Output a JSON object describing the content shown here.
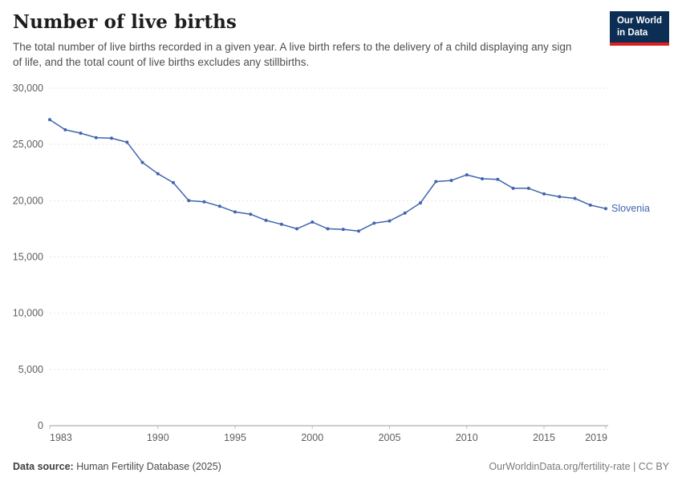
{
  "header": {
    "title": "Number of live births",
    "subtitle": "The total number of live births recorded in a given year. A live birth refers to the delivery of a child displaying any sign of life, and the total count of live births excludes any stillbirths.",
    "logo": {
      "line1": "Our World",
      "line2": "in Data"
    }
  },
  "branding": {
    "logo_bg": "#0c2d54",
    "logo_accent": "#dc1f1f"
  },
  "chart_data": {
    "type": "line",
    "title": "Number of live births",
    "xlabel": "",
    "ylabel": "",
    "xlim": [
      1983,
      2019
    ],
    "ylim": [
      0,
      30000
    ],
    "grid": "horizontal-dashed",
    "legend_position": "end-of-line",
    "yticks": [
      0,
      5000,
      10000,
      15000,
      20000,
      25000,
      30000
    ],
    "ytick_labels": [
      "0",
      "5,000",
      "10,000",
      "15,000",
      "20,000",
      "25,000",
      "30,000"
    ],
    "xticks": [
      1983,
      1990,
      1995,
      2000,
      2005,
      2010,
      2015,
      2019
    ],
    "x": [
      1983,
      1984,
      1985,
      1986,
      1987,
      1988,
      1989,
      1990,
      1991,
      1992,
      1993,
      1994,
      1995,
      1996,
      1997,
      1998,
      1999,
      2000,
      2001,
      2002,
      2003,
      2004,
      2005,
      2006,
      2007,
      2008,
      2009,
      2010,
      2011,
      2012,
      2013,
      2014,
      2015,
      2016,
      2017,
      2018,
      2019
    ],
    "series": [
      {
        "name": "Slovenia",
        "color": "#4165ad",
        "values": [
          27200,
          26300,
          26000,
          25600,
          25550,
          25200,
          23400,
          22400,
          21600,
          20000,
          19900,
          19500,
          19000,
          18800,
          18250,
          17900,
          17500,
          18100,
          17500,
          17450,
          17300,
          18000,
          18200,
          18900,
          19800,
          21700,
          21800,
          22300,
          21950,
          21900,
          21100,
          21100,
          20600,
          20350,
          20200,
          19600,
          19300
        ]
      }
    ]
  },
  "footer": {
    "source_label": "Data source:",
    "source_value": " Human Fertility Database (2025)",
    "attribution": "OurWorldinData.org/fertility-rate | CC BY"
  }
}
